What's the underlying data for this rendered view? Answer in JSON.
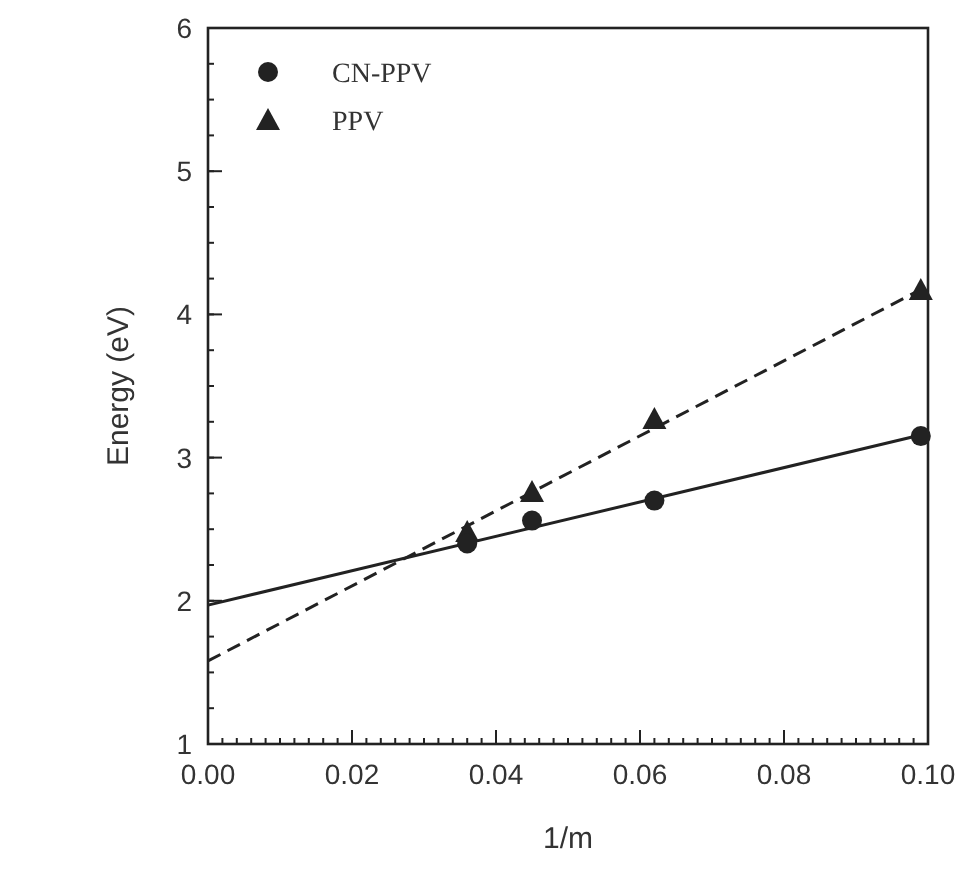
{
  "chart_data": {
    "type": "scatter",
    "xlabel": "1/m",
    "ylabel": "Energy (eV)",
    "xlim": [
      0,
      0.1
    ],
    "ylim": [
      1,
      6
    ],
    "xticks": [
      {
        "value": 0,
        "label": "0.00"
      },
      {
        "value": 0.02,
        "label": "0.02"
      },
      {
        "value": 0.04,
        "label": "0.04"
      },
      {
        "value": 0.06,
        "label": "0.06"
      },
      {
        "value": 0.08,
        "label": "0.08"
      },
      {
        "value": 0.1,
        "label": "0.10"
      }
    ],
    "yticks": [
      1,
      2,
      3,
      4,
      5,
      6
    ],
    "grid": false,
    "legend": "top left",
    "series": [
      {
        "name": "CN-PPV",
        "color": "#222222",
        "marker": "circle",
        "x": [
          0.036,
          0.045,
          0.062,
          0.099
        ],
        "values": [
          2.4,
          2.56,
          2.7,
          3.15
        ]
      },
      {
        "name": "PPV",
        "color": "#222222",
        "marker": "triangle",
        "x": [
          0.036,
          0.045,
          0.062,
          0.099
        ],
        "values": [
          2.48,
          2.76,
          3.27,
          4.17
        ]
      },
      {
        "type": "line",
        "color": "#222222",
        "line_style": "solid",
        "marker": "none",
        "x": [
          0,
          0.1
        ],
        "values": [
          1.97,
          3.17
        ]
      },
      {
        "type": "line",
        "color": "#222222",
        "line_style": "dashed",
        "marker": "none",
        "x": [
          0,
          0.1
        ],
        "values": [
          1.58,
          4.2
        ]
      }
    ]
  }
}
